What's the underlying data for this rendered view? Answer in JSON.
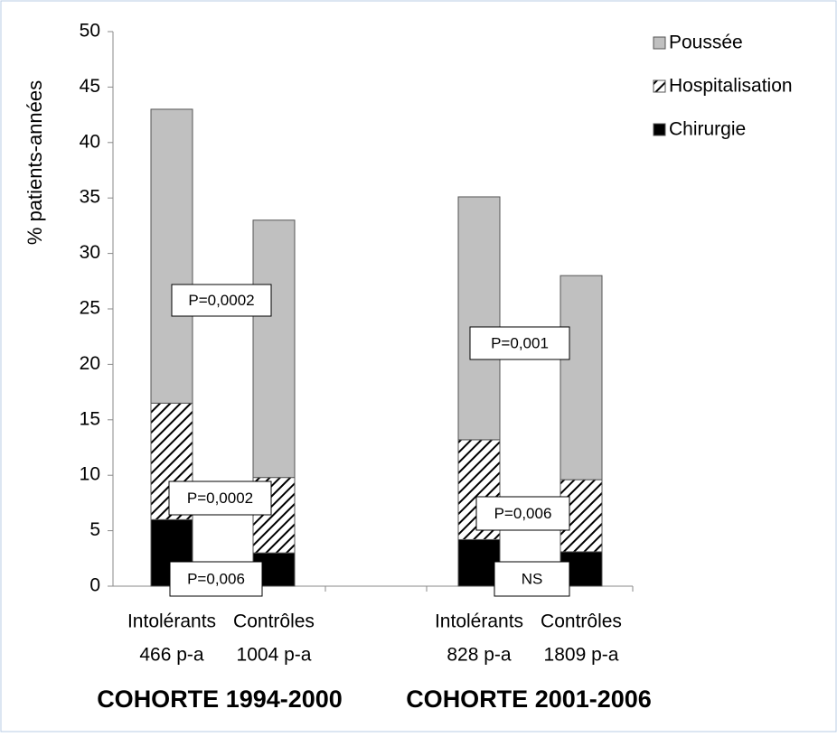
{
  "chart_data": {
    "type": "stacked-bar",
    "ylabel": "% patients-années",
    "categories": [
      "Intolérants",
      "Contrôles",
      null,
      "Intolérants",
      "Contrôles"
    ],
    "sublabels": [
      "466 p-a",
      "1004 p-a",
      null,
      "828 p-a",
      "1809 p-a"
    ],
    "groups": [
      "COHORTE 1994-2000",
      "COHORTE 2001-2006"
    ],
    "series": [
      {
        "name": "Chirurgie",
        "color": "#000000",
        "values": [
          6,
          3,
          null,
          4.2,
          3.1
        ]
      },
      {
        "name": "Hospitalisation",
        "color": "hatch",
        "values": [
          10.5,
          6.8,
          null,
          9.0,
          6.5
        ]
      },
      {
        "name": "Poussée",
        "color": "#c0c0c0",
        "values": [
          26.5,
          23.2,
          null,
          21.9,
          18.4
        ]
      }
    ],
    "annotations": [
      "P=0,0002",
      "P=0,0002",
      "P=0,006",
      "P=0,001",
      "P=0,006",
      "NS"
    ],
    "ylim": [
      0,
      50
    ],
    "yticks": [
      0,
      5,
      10,
      15,
      20,
      25,
      30,
      35,
      40,
      45,
      50
    ],
    "grid": false,
    "legend": "top-right"
  }
}
